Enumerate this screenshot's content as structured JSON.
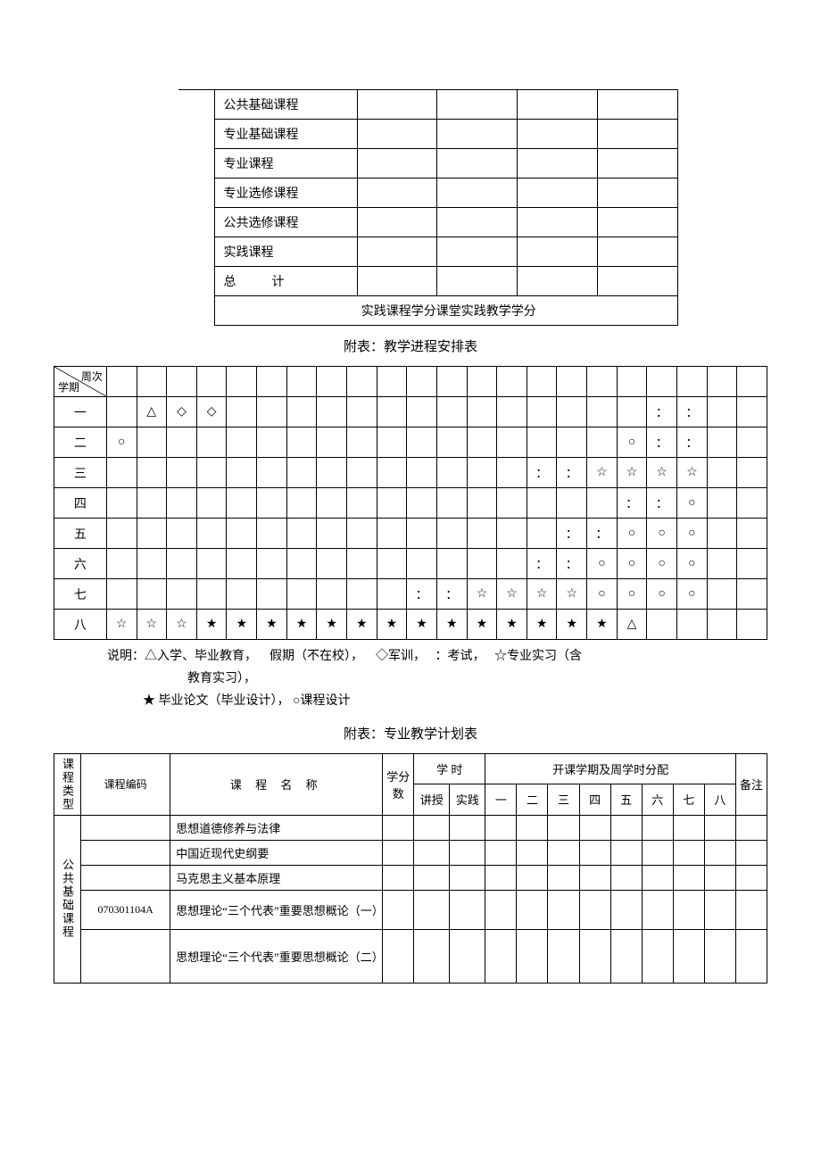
{
  "table1": {
    "rows": [
      "公共基础课程",
      "专业基础课程",
      "专业课程",
      "专业选修课程",
      "公共选修课程",
      "实践课程"
    ],
    "total": "总计",
    "footnote": "实践课程学分课堂实践教学学分"
  },
  "caption2": "附表：教学进程安排表",
  "table2": {
    "header_top": "周次",
    "header_bot": "学期",
    "sem_labels": [
      "一",
      "二",
      "三",
      "四",
      "五",
      "六",
      "七",
      "八"
    ],
    "symbols": {
      "tri": "△",
      "dia": "◇",
      "cir": "○",
      "col": "：",
      "ostar": "☆",
      "fstar": "★"
    },
    "rows": [
      [
        "",
        "△",
        "◇",
        "◇",
        "",
        "",
        "",
        "",
        "",
        "",
        "",
        "",
        "",
        "",
        "",
        "",
        "",
        "",
        "：",
        "：",
        "",
        ""
      ],
      [
        "○",
        "",
        "",
        "",
        "",
        "",
        "",
        "",
        "",
        "",
        "",
        "",
        "",
        "",
        "",
        "",
        "",
        "○",
        "：",
        "：",
        "",
        ""
      ],
      [
        "",
        "",
        "",
        "",
        "",
        "",
        "",
        "",
        "",
        "",
        "",
        "",
        "",
        "",
        "：",
        "：",
        "☆",
        "☆",
        "☆",
        "☆",
        "",
        ""
      ],
      [
        "",
        "",
        "",
        "",
        "",
        "",
        "",
        "",
        "",
        "",
        "",
        "",
        "",
        "",
        "",
        "",
        "",
        "：",
        "：",
        "○",
        "",
        ""
      ],
      [
        "",
        "",
        "",
        "",
        "",
        "",
        "",
        "",
        "",
        "",
        "",
        "",
        "",
        "",
        "",
        "：",
        "：",
        "○",
        "○",
        "○",
        "",
        ""
      ],
      [
        "",
        "",
        "",
        "",
        "",
        "",
        "",
        "",
        "",
        "",
        "",
        "",
        "",
        "",
        "：",
        "：",
        "○",
        "○",
        "○",
        "○",
        "",
        ""
      ],
      [
        "",
        "",
        "",
        "",
        "",
        "",
        "",
        "",
        "",
        "",
        "：",
        "：",
        "☆",
        "☆",
        "☆",
        "☆",
        "○",
        "○",
        "○",
        "○",
        "",
        ""
      ],
      [
        "☆",
        "☆",
        "☆",
        "★",
        "★",
        "★",
        "★",
        "★",
        "★",
        "★",
        "★",
        "★",
        "★",
        "★",
        "★",
        "★",
        "★",
        "△",
        "",
        "",
        "",
        ""
      ]
    ]
  },
  "legend": {
    "l1a": "说明：△入学、毕业教育，",
    "l1b": "假期（不在校），",
    "l1c": "◇军训，",
    "l1d": "：考试，",
    "l1e": "☆专业实习（含",
    "l2": "教育实习），",
    "l3": "★  毕业论文（毕业设计）， ○课程设计"
  },
  "caption3": "附表：专业教学计划表",
  "table3": {
    "h_type": "课程类型",
    "h_code": "课程编码",
    "h_name": "课 程 名 称",
    "h_credit": "学分数",
    "h_hours": "学 时",
    "h_lec": "讲授",
    "h_prac": "实践",
    "h_semgroup": "开课学期及周学时分配",
    "h_sem": [
      "一",
      "二",
      "三",
      "四",
      "五",
      "六",
      "七",
      "八"
    ],
    "h_note": "备注",
    "cat1": "公共基础课程",
    "r1": "思想道德修养与法律",
    "r2": "中国近现代史纲要",
    "r3": "马克思主义基本原理",
    "r4_code": "070301104A",
    "r4": "思想理论“三个代表”重要思想概论（一）",
    "r5": "思想理论“三个代表”重要思想概论（二）"
  }
}
